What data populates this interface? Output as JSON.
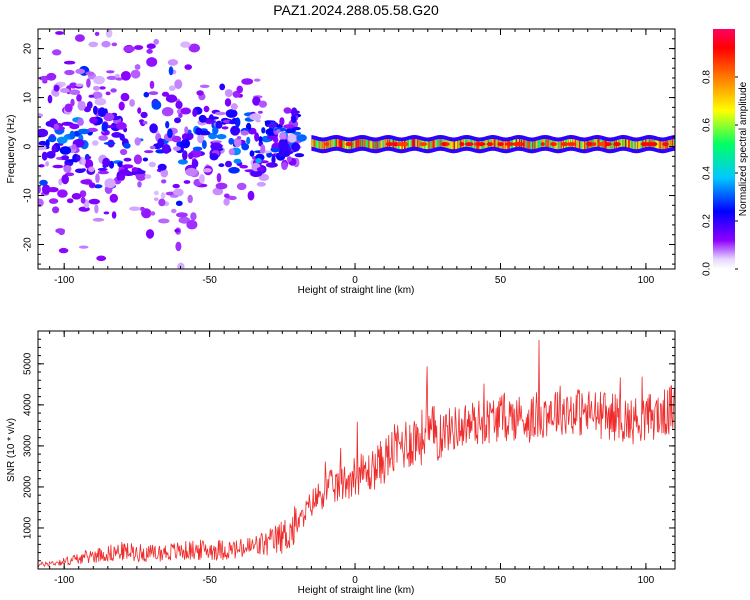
{
  "chart_data": [
    {
      "type": "heatmap",
      "title": "PAZ1.2024.288.05.58.G20",
      "xlabel": "Height of straight line (km)",
      "ylabel": "Frequency (Hz)",
      "xlim": [
        -109,
        110
      ],
      "ylim": [
        -25,
        24
      ],
      "xticks": [
        -100,
        -50,
        0,
        50,
        100
      ],
      "yticks": [
        -20,
        -10,
        0,
        10,
        20
      ],
      "colorbar": {
        "label": "Normalized spectral amplitude",
        "range": [
          0,
          1
        ],
        "ticks": [
          "0.0",
          "0.2",
          "0.4",
          "0.6",
          "0.8"
        ],
        "colormap": "rainbow",
        "colors": [
          "#ffffff",
          "#8c00ff",
          "#0000ff",
          "#00c8ff",
          "#00ff64",
          "#ffff00",
          "#ff7800",
          "#ff0000",
          "#ff0064"
        ]
      },
      "ridge": {
        "x_range": [
          -15,
          110
        ],
        "center_frequency": 0.5,
        "halfwidth": 1.0,
        "peak_amplitude": 0.95
      },
      "scatter_region": {
        "x_range": [
          -109,
          -18
        ],
        "frequency_range": [
          -25,
          24
        ],
        "dominant_amplitude": "0.05-0.3"
      }
    },
    {
      "type": "line",
      "xlabel": "Height of straight line (km)",
      "ylabel": "SNR (10 * v/v)",
      "xlim": [
        -109,
        110
      ],
      "ylim": [
        0,
        5800
      ],
      "xticks": [
        -100,
        -50,
        0,
        50,
        100
      ],
      "yticks": [
        1000,
        2000,
        3000,
        4000,
        5000
      ],
      "line_color": "#ef2b2b",
      "x": [
        -109,
        -100,
        -90,
        -80,
        -70,
        -60,
        -50,
        -40,
        -30,
        -25,
        -20,
        -15,
        -10,
        -5,
        0,
        5,
        10,
        15,
        20,
        25,
        30,
        35,
        40,
        45,
        50,
        55,
        60,
        65,
        70,
        75,
        80,
        85,
        90,
        95,
        100,
        105,
        110
      ],
      "y": [
        100,
        180,
        330,
        430,
        380,
        440,
        470,
        470,
        620,
        780,
        1050,
        1600,
        1950,
        2050,
        2300,
        2350,
        2650,
        3000,
        3150,
        3250,
        3350,
        3450,
        3550,
        3600,
        3700,
        3700,
        3650,
        3800,
        3900,
        3850,
        3800,
        3750,
        3700,
        3600,
        3700,
        3750,
        3900
      ]
    }
  ]
}
